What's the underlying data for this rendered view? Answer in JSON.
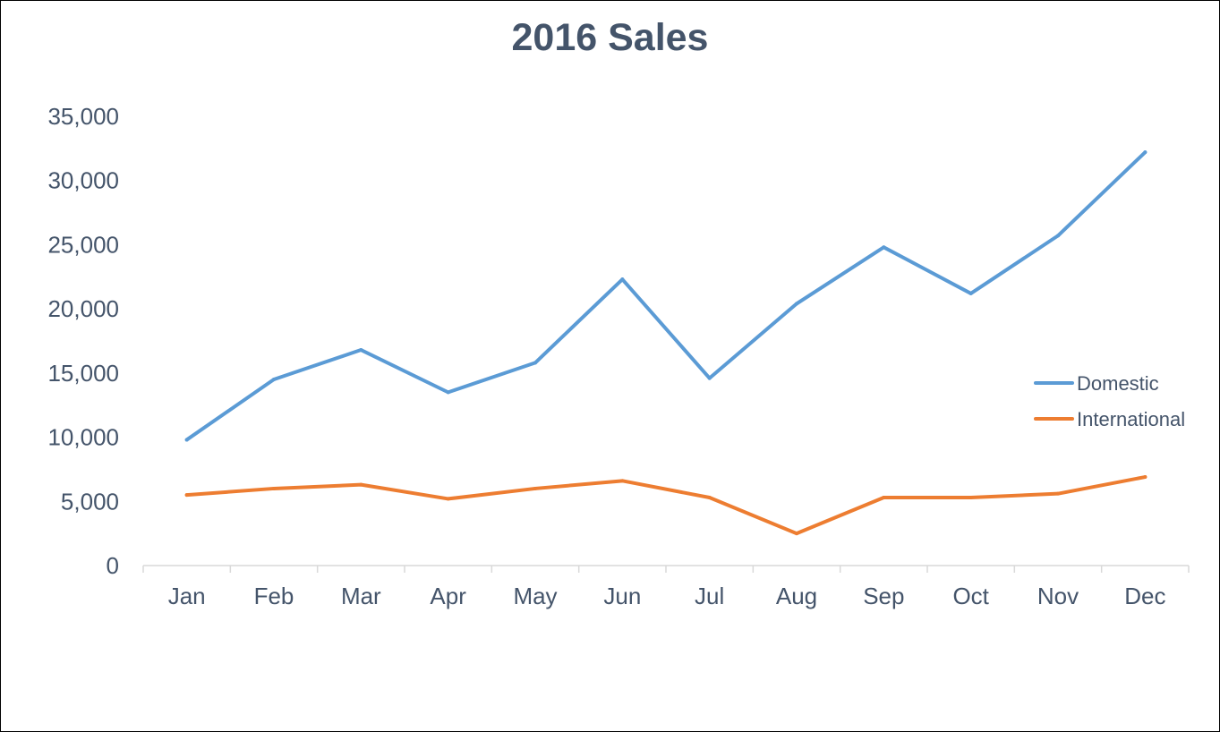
{
  "chart_data": {
    "type": "line",
    "title": "2016 Sales",
    "xlabel": "",
    "ylabel": "",
    "categories": [
      "Jan",
      "Feb",
      "Mar",
      "Apr",
      "May",
      "Jun",
      "Jul",
      "Aug",
      "Sep",
      "Oct",
      "Nov",
      "Dec"
    ],
    "ylim": [
      0,
      35000
    ],
    "yticks": [
      0,
      5000,
      10000,
      15000,
      20000,
      25000,
      30000,
      35000
    ],
    "ytick_labels": [
      "0",
      "5,000",
      "10,000",
      "15,000",
      "20,000",
      "25,000",
      "30,000",
      "35,000"
    ],
    "grid": false,
    "legend_position": "right",
    "series": [
      {
        "name": "Domestic",
        "color": "#5b9bd5",
        "values": [
          9800,
          14500,
          16800,
          13500,
          15800,
          22300,
          14600,
          20400,
          24800,
          21200,
          25700,
          32200
        ]
      },
      {
        "name": "International",
        "color": "#ed7d31",
        "values": [
          5500,
          6000,
          6300,
          5200,
          6000,
          6600,
          5300,
          2500,
          5300,
          5300,
          5600,
          6900
        ]
      }
    ]
  },
  "colors": {
    "title": "#44546a",
    "axis_text": "#44546a",
    "axis_line": "#d9d9d9",
    "frame": "#000000"
  }
}
